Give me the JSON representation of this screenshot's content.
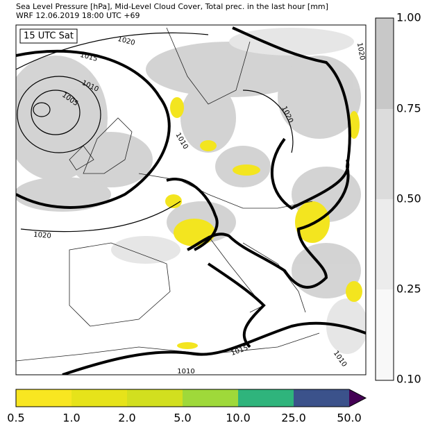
{
  "header": {
    "title": "Sea Level Pressure [hPa], Mid-Level Cloud Cover, Total prec. in the last hour [mm]",
    "subtitle": "WRF 12.06.2019 18:00 UTC +69"
  },
  "map": {
    "time_label": "15 UTC Sat",
    "isobar_labels": [
      "1020",
      "1015",
      "1010",
      "1005",
      "1010",
      "1020",
      "1020",
      "1015",
      "1010",
      "1010",
      "1020"
    ]
  },
  "cloud_colorbar": {
    "ticks": [
      "1.00",
      "0.75",
      "0.50",
      "0.25",
      "0.10"
    ]
  },
  "precip_colorbar": {
    "ticks": [
      "0.5",
      "1.0",
      "2.0",
      "5.0",
      "10.0",
      "25.0",
      "50.0"
    ]
  }
}
